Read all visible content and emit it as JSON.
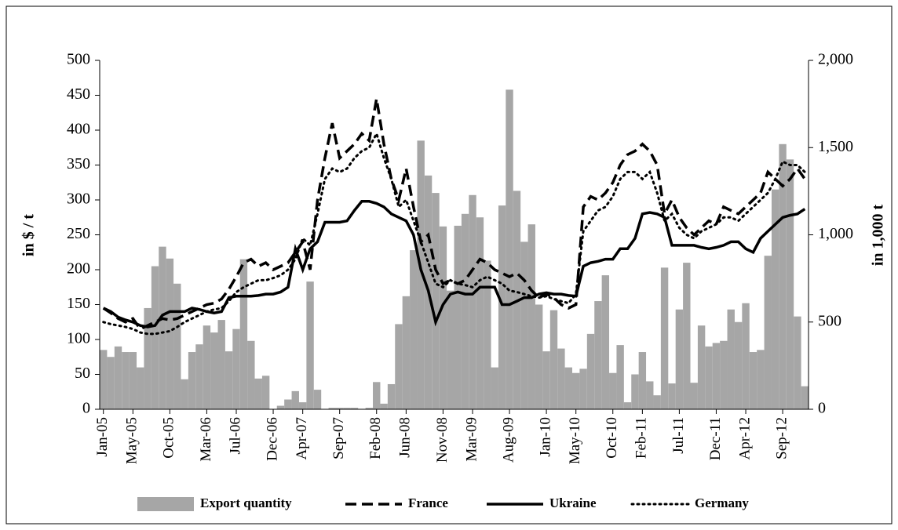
{
  "chart_data": {
    "type": "bar-line",
    "y_label": "in $ / t",
    "y2_label": "in 1,000 t",
    "categories": [
      "Jan-05",
      null,
      null,
      null,
      "May-05",
      null,
      null,
      null,
      null,
      "Oct-05",
      null,
      null,
      null,
      null,
      "Mar-06",
      null,
      null,
      null,
      "Jul-06",
      null,
      null,
      null,
      null,
      "Dec-06",
      null,
      null,
      null,
      "Apr-07",
      null,
      null,
      null,
      null,
      "Sep-07",
      null,
      null,
      null,
      null,
      "Feb-08",
      null,
      null,
      null,
      "Jun-08",
      null,
      null,
      null,
      null,
      "Nov-08",
      null,
      null,
      null,
      "Mar-09",
      null,
      null,
      null,
      null,
      "Aug-09",
      null,
      null,
      null,
      null,
      "Jan-10",
      null,
      null,
      null,
      "May-10",
      null,
      null,
      null,
      null,
      "Oct-10",
      null,
      null,
      null,
      "Feb-11",
      null,
      null,
      null,
      null,
      "Jul-11",
      null,
      null,
      null,
      null,
      "Dec-11",
      null,
      null,
      null,
      "Apr-12",
      null,
      null,
      null,
      null,
      "Sep-12",
      null,
      null,
      null
    ],
    "series": [
      {
        "name": "Export quantity",
        "type": "bar",
        "axis": "y2",
        "color": "#a6a6a6",
        "values": [
          340,
          300,
          360,
          328,
          328,
          240,
          580,
          820,
          932,
          864,
          720,
          172,
          328,
          372,
          480,
          440,
          512,
          332,
          460,
          860,
          392,
          176,
          192,
          0,
          20,
          56,
          104,
          40,
          732,
          112,
          0,
          8,
          8,
          8,
          8,
          0,
          8,
          156,
          32,
          144,
          488,
          648,
          912,
          1540,
          1340,
          1240,
          1048,
          680,
          1052,
          1120,
          1228,
          1100,
          852,
          240,
          1168,
          1832,
          1252,
          960,
          1060,
          600,
          332,
          568,
          348,
          240,
          208,
          232,
          432,
          620,
          768,
          208,
          368,
          40,
          200,
          328,
          160,
          80,
          812,
          148,
          572,
          840,
          152,
          480,
          360,
          380,
          392,
          572,
          500,
          608,
          328,
          340,
          880,
          1260,
          1520,
          1432,
          532,
          132
        ]
      },
      {
        "name": "France",
        "type": "line",
        "dash": "dashed",
        "color": "#000000",
        "values": [
          145,
          138,
          130,
          125,
          130,
          115,
          120,
          125,
          130,
          128,
          130,
          135,
          140,
          145,
          150,
          152,
          158,
          172,
          190,
          210,
          215,
          205,
          210,
          200,
          205,
          210,
          225,
          240,
          200,
          300,
          360,
          410,
          360,
          370,
          380,
          395,
          385,
          445,
          380,
          330,
          300,
          345,
          290,
          240,
          250,
          200,
          180,
          185,
          180,
          185,
          200,
          215,
          210,
          200,
          195,
          190,
          195,
          185,
          170,
          160,
          165,
          160,
          150,
          145,
          150,
          290,
          305,
          300,
          310,
          325,
          350,
          365,
          370,
          380,
          370,
          350,
          280,
          300,
          275,
          260,
          250,
          260,
          270,
          265,
          290,
          285,
          280,
          290,
          300,
          310,
          340,
          330,
          320,
          330,
          345,
          330
        ]
      },
      {
        "name": "Ukraine",
        "type": "line",
        "dash": "solid",
        "color": "#000000",
        "values": [
          145,
          140,
          132,
          128,
          125,
          120,
          118,
          120,
          135,
          140,
          140,
          140,
          145,
          143,
          140,
          138,
          140,
          160,
          162,
          162,
          162,
          163,
          165,
          165,
          168,
          175,
          230,
          200,
          230,
          240,
          268,
          268,
          268,
          270,
          285,
          298,
          298,
          295,
          290,
          280,
          275,
          270,
          250,
          200,
          170,
          125,
          150,
          165,
          168,
          165,
          165,
          175,
          175,
          175,
          150,
          150,
          155,
          160,
          160,
          165,
          167,
          165,
          165,
          163,
          162,
          205,
          210,
          212,
          215,
          215,
          230,
          230,
          245,
          280,
          282,
          280,
          275,
          235,
          235,
          235,
          235,
          232,
          230,
          232,
          235,
          240,
          240,
          230,
          225,
          245,
          255,
          265,
          275,
          278,
          280,
          287
        ]
      },
      {
        "name": "Germany",
        "type": "line",
        "dash": "dotted",
        "color": "#000000",
        "values": [
          125,
          122,
          120,
          118,
          115,
          110,
          108,
          108,
          110,
          112,
          118,
          125,
          130,
          135,
          140,
          143,
          145,
          155,
          168,
          175,
          180,
          185,
          185,
          188,
          192,
          200,
          215,
          245,
          235,
          280,
          330,
          345,
          340,
          345,
          360,
          370,
          375,
          395,
          360,
          330,
          290,
          300,
          270,
          240,
          210,
          180,
          175,
          185,
          180,
          178,
          175,
          185,
          190,
          185,
          180,
          170,
          168,
          165,
          162,
          160,
          162,
          158,
          155,
          152,
          165,
          255,
          270,
          285,
          290,
          305,
          330,
          340,
          340,
          330,
          340,
          310,
          270,
          280,
          260,
          250,
          245,
          255,
          260,
          265,
          275,
          275,
          270,
          280,
          290,
          300,
          310,
          330,
          355,
          350,
          350,
          340
        ]
      }
    ],
    "ylim": [
      0,
      500
    ],
    "yticks": [
      0,
      50,
      100,
      150,
      200,
      250,
      300,
      350,
      400,
      450,
      500
    ],
    "y2lim": [
      0,
      2000
    ],
    "y2ticks": [
      0,
      500,
      {
        "value": 1000,
        "label": "1,000"
      },
      {
        "value": 1500,
        "label": "1,500"
      },
      {
        "value": 2000,
        "label": "2,000"
      }
    ],
    "legend": "bottom"
  }
}
